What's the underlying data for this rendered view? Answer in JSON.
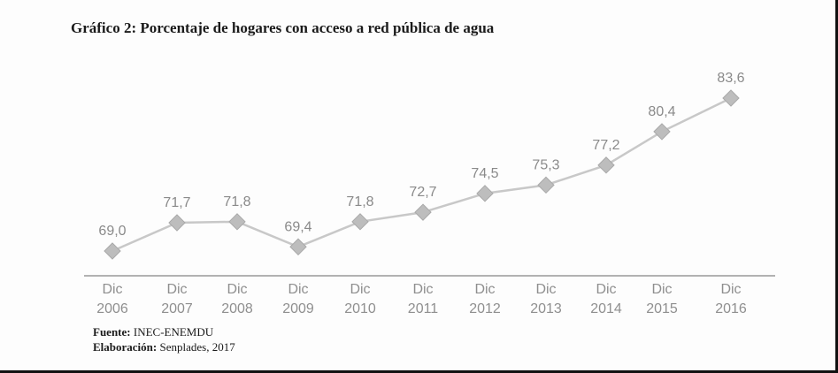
{
  "header": {
    "title": "Gráfico 2: Porcentaje de hogares con acceso a red pública de agua"
  },
  "footer": {
    "source_label": "Fuente:",
    "source_value": "INEC-ENEMDU",
    "made_by_label": "Elaboración:",
    "made_by_value": "Senplades, 2017"
  },
  "chart_data": {
    "type": "line",
    "title": "Gráfico 2: Porcentaje de hogares con acceso a red pública de agua",
    "xlabel": "",
    "ylabel": "",
    "categories": [
      [
        "Dic",
        "2006"
      ],
      [
        "Dic",
        "2007"
      ],
      [
        "Dic",
        "2008"
      ],
      [
        "Dic",
        "2009"
      ],
      [
        "Dic",
        "2010"
      ],
      [
        "Dic",
        "2011"
      ],
      [
        "Dic",
        "2012"
      ],
      [
        "Dic",
        "2013"
      ],
      [
        "Dic",
        "2014"
      ],
      [
        "Dic",
        "2015"
      ],
      [
        "Dic",
        "2016"
      ]
    ],
    "values": [
      69.0,
      71.7,
      71.8,
      69.4,
      71.8,
      72.7,
      74.5,
      75.3,
      77.2,
      80.4,
      83.6
    ],
    "value_labels": [
      "69,0",
      "71,7",
      "71,8",
      "69,4",
      "71,8",
      "72,7",
      "74,5",
      "75,3",
      "77,2",
      "80,4",
      "83,6"
    ],
    "grid": false,
    "legend": "none",
    "line_color": "#c8c8c8",
    "marker_color": "#bdbdbd",
    "marker": "diamond"
  }
}
